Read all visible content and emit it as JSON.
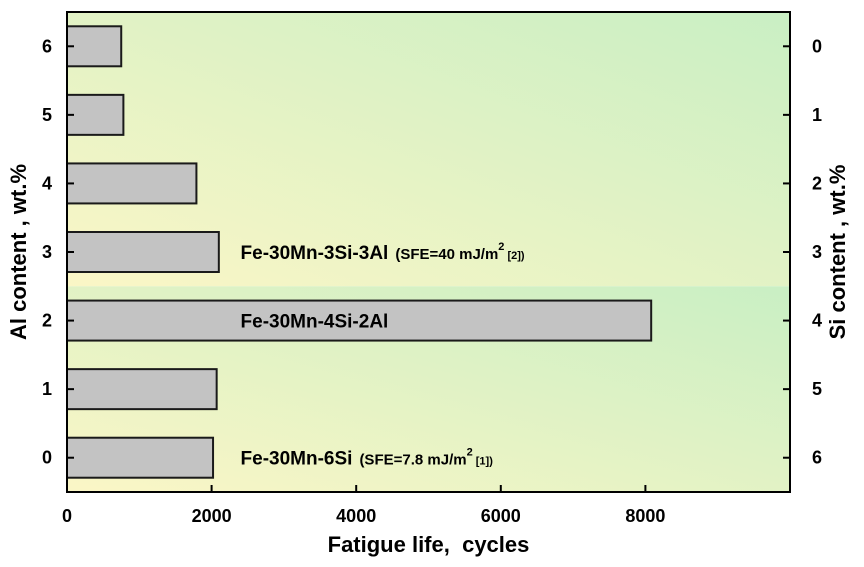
{
  "chart_data": {
    "type": "bar",
    "orientation": "horizontal",
    "categories": [
      "0",
      "1",
      "2",
      "3",
      "4",
      "5",
      "6"
    ],
    "values": [
      2020,
      2070,
      8080,
      2100,
      1790,
      780,
      750
    ],
    "right_categories": [
      "6",
      "5",
      "4",
      "3",
      "2",
      "1",
      "0"
    ],
    "xlabel": "Fatigue life,  cycles",
    "ylabel": "Al content , wt.%",
    "ylabel_right": "Si content , wt.%",
    "xlim": [
      0,
      10000
    ],
    "xticks": [
      "0",
      "2000",
      "4000",
      "6000",
      "8000"
    ],
    "xtick_values": [
      0,
      2000,
      4000,
      6000,
      8000
    ],
    "grid": false,
    "colors": {
      "bar_fill": "#c3c3c3",
      "bar_stroke": "#1a1a1a",
      "bg_green": "#c9efc4",
      "bg_yellow": "#fbf6c6"
    },
    "annotations": [
      {
        "category_index": 3,
        "x": 2400,
        "label": "Fe-30Mn-3Si-3Al",
        "sfe_prefix": "(SFE=40  mJ/m",
        "sup": "2",
        "ref": " [2])"
      },
      {
        "category_index": 2,
        "x": 2400,
        "label": "Fe-30Mn-4Si-2Al",
        "sfe_prefix": "",
        "sup": "",
        "ref": ""
      },
      {
        "category_index": 0,
        "x": 2400,
        "label": "Fe-30Mn-6Si",
        "sfe_prefix": "(SFE=7.8 mJ/m",
        "sup": "2",
        "ref": " [1])"
      }
    ]
  }
}
